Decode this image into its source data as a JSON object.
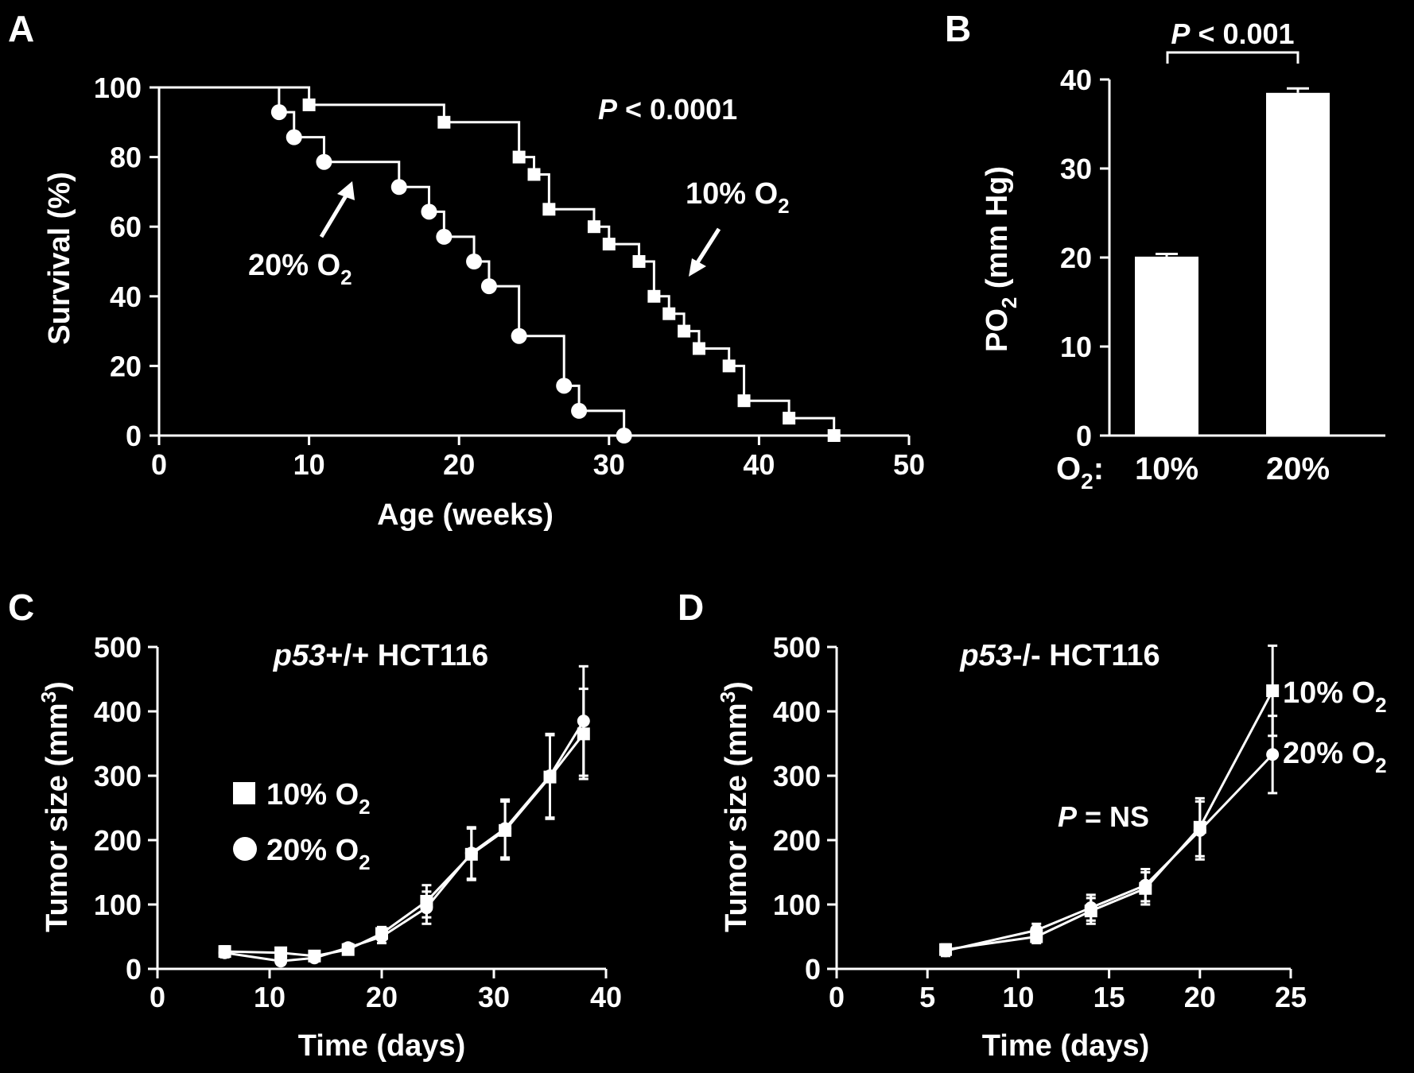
{
  "chart_data": [
    {
      "panel": "A",
      "type": "line",
      "subtype": "kaplan-meier",
      "xlabel": "Age (weeks)",
      "ylabel": "Survival (%)",
      "xlim": [
        0,
        50
      ],
      "ylim": [
        0,
        100
      ],
      "xticks": [
        "0",
        "10",
        "20",
        "30",
        "40",
        "50"
      ],
      "yticks": [
        "0",
        "20",
        "40",
        "60",
        "80",
        "100"
      ],
      "annotation_p": "P",
      "annotation_rest": " < 0.0001",
      "series": [
        {
          "name": "20% O2",
          "label_main": "20% O",
          "label_sub": "2",
          "marker": "circle",
          "steps": [
            [
              0,
              100
            ],
            [
              8,
              92.9
            ],
            [
              9,
              85.7
            ],
            [
              11,
              78.6
            ],
            [
              16,
              71.4
            ],
            [
              18,
              64.3
            ],
            [
              19,
              57.1
            ],
            [
              21,
              50
            ],
            [
              22,
              42.9
            ],
            [
              24,
              28.6
            ],
            [
              27,
              14.3
            ],
            [
              28,
              7.1
            ],
            [
              31,
              0
            ]
          ],
          "markers": [
            [
              8,
              92.9
            ],
            [
              9,
              85.7
            ],
            [
              11,
              78.6
            ],
            [
              16,
              71.4
            ],
            [
              18,
              64.3
            ],
            [
              19,
              57.1
            ],
            [
              21,
              50
            ],
            [
              22,
              42.9
            ],
            [
              24,
              28.6
            ],
            [
              27,
              14.3
            ],
            [
              28,
              7.1
            ],
            [
              31,
              0
            ]
          ]
        },
        {
          "name": "10% O2",
          "label_main": "10% O",
          "label_sub": "2",
          "marker": "square",
          "steps": [
            [
              0,
              100
            ],
            [
              10,
              95
            ],
            [
              19,
              90
            ],
            [
              24,
              80
            ],
            [
              25,
              75
            ],
            [
              26,
              65
            ],
            [
              29,
              60
            ],
            [
              30,
              55
            ],
            [
              32,
              50
            ],
            [
              33,
              40
            ],
            [
              34,
              35
            ],
            [
              35,
              30
            ],
            [
              36,
              25
            ],
            [
              38,
              20
            ],
            [
              39,
              10
            ],
            [
              42,
              5
            ],
            [
              45,
              0
            ]
          ],
          "markers": [
            [
              10,
              95
            ],
            [
              19,
              90
            ],
            [
              24,
              80
            ],
            [
              25,
              75
            ],
            [
              26,
              65
            ],
            [
              29,
              60
            ],
            [
              30,
              55
            ],
            [
              32,
              50
            ],
            [
              33,
              40
            ],
            [
              34,
              35
            ],
            [
              35,
              30
            ],
            [
              36,
              25
            ],
            [
              38,
              20
            ],
            [
              39,
              10
            ],
            [
              42,
              5
            ],
            [
              45,
              0
            ]
          ]
        }
      ]
    },
    {
      "panel": "B",
      "type": "bar",
      "ylabel_main": "PO",
      "ylabel_sub": "2",
      "ylabel_rest": " (mm Hg)",
      "ylim": [
        0,
        40
      ],
      "yticks": [
        "0",
        "10",
        "20",
        "30",
        "40"
      ],
      "xprefix_main": "O",
      "xprefix_sub": "2",
      "xprefix_rest": ":",
      "categories": [
        "10%",
        "20%"
      ],
      "values": [
        20.1,
        38.5
      ],
      "errors": [
        0.3,
        0.5
      ],
      "annotation_p": "P",
      "annotation_rest": " < 0.001"
    },
    {
      "panel": "C",
      "type": "line",
      "title_italic": "p53",
      "title_rest": "+/+ HCT116",
      "xlabel": "Time (days)",
      "ylabel_main": "Tumor size (mm",
      "ylabel_sup": "3",
      "ylabel_end": ")",
      "xlim": [
        0,
        40
      ],
      "ylim": [
        0,
        500
      ],
      "xticks": [
        "0",
        "10",
        "20",
        "30",
        "40"
      ],
      "yticks": [
        "0",
        "100",
        "200",
        "300",
        "400",
        "500"
      ],
      "series": [
        {
          "name": "10% O2",
          "label_main": "10% O",
          "label_sub": "2",
          "marker": "square",
          "x": [
            6,
            11,
            14,
            17,
            20,
            24,
            28,
            31,
            35,
            38
          ],
          "y": [
            27,
            25,
            20,
            30,
            55,
            105,
            178,
            215,
            298,
            365
          ],
          "err": [
            8,
            7,
            6,
            7,
            10,
            25,
            40,
            45,
            65,
            70
          ]
        },
        {
          "name": "20% O2",
          "label_main": "20% O",
          "label_sub": "2",
          "marker": "circle",
          "x": [
            6,
            11,
            14,
            17,
            20,
            24,
            28,
            31,
            35,
            38
          ],
          "y": [
            25,
            12,
            17,
            33,
            50,
            95,
            180,
            218,
            300,
            385
          ],
          "err": [
            7,
            5,
            5,
            6,
            10,
            25,
            40,
            45,
            65,
            85
          ]
        }
      ]
    },
    {
      "panel": "D",
      "type": "line",
      "title_italic": "p53",
      "title_rest": "-/- HCT116",
      "xlabel": "Time (days)",
      "ylabel_main": "Tumor size (mm",
      "ylabel_sup": "3",
      "ylabel_end": ")",
      "xlim": [
        0,
        25
      ],
      "ylim": [
        0,
        500
      ],
      "xticks": [
        "0",
        "5",
        "10",
        "15",
        "20",
        "25"
      ],
      "yticks": [
        "0",
        "100",
        "200",
        "300",
        "400",
        "500"
      ],
      "annotation_p": "P",
      "annotation_rest": " = NS",
      "series": [
        {
          "name": "10% O2",
          "label_main": "10% O",
          "label_sub": "2",
          "marker": "square",
          "x": [
            6,
            11,
            14,
            17,
            20,
            24
          ],
          "y": [
            30,
            50,
            90,
            125,
            220,
            432
          ],
          "err": [
            8,
            10,
            20,
            25,
            45,
            70
          ]
        },
        {
          "name": "20% O2",
          "label_main": "20% O",
          "label_sub": "2",
          "marker": "circle",
          "x": [
            6,
            11,
            14,
            17,
            20,
            24
          ],
          "y": [
            28,
            60,
            95,
            130,
            215,
            333
          ],
          "err": [
            8,
            10,
            20,
            25,
            45,
            60
          ]
        }
      ]
    }
  ],
  "panels": [
    {
      "letter": "A"
    },
    {
      "letter": "B"
    },
    {
      "letter": "C"
    },
    {
      "letter": "D"
    }
  ]
}
